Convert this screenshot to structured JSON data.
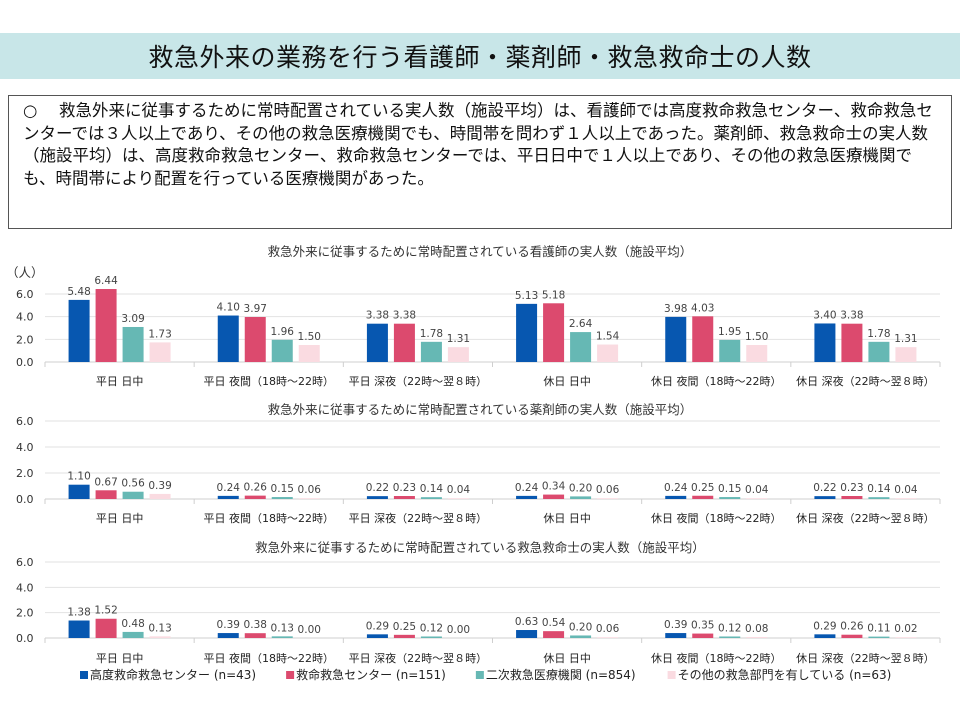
{
  "page": {
    "title": "救急外来の業務を行う看護師・薬剤師・救急救命士の人数",
    "summary_bullet": "○",
    "summary_text": "救急外来に従事するために常時配置されている実人数（施設平均）は、看護師では高度救命救急センター、救命救急センターでは３人以上であり、その他の救急医療機関でも、時間帯を問わず１人以上であった。薬剤師、救急救命士の実人数（施設平均）は、高度救命救急センター、救命救急センターでは、平日日中で１人以上であり、その他の救急医療機関でも、時間帯により配置を行っている医療機関があった。"
  },
  "legend": [
    {
      "label": "高度救命救急センター (n=43)",
      "color": "#0757b0"
    },
    {
      "label": "救命救急センター (n=151)",
      "color": "#dc4a6e"
    },
    {
      "label": "二次救急医療機関 (n=854)",
      "color": "#66b8b4"
    },
    {
      "label": "その他の救急部門を有している (n=63)",
      "color": "#fadbe1"
    }
  ],
  "chart_data": [
    {
      "type": "bar",
      "title": "救急外来に従事するために常時配置されている看護師の実人数（施設平均）",
      "ylabel": "（人）",
      "ylim": [
        0,
        6
      ],
      "yticks": [
        "0.0",
        "2.0",
        "4.0",
        "6.0"
      ],
      "grid": true,
      "categories": [
        "平日 日中",
        "平日 夜間（18時～22時）",
        "平日 深夜（22時～翌８時）",
        "休日 日中",
        "休日 夜間（18時～22時）",
        "休日 深夜（22時～翌８時）"
      ],
      "series": [
        {
          "name": "高度救命救急センター (n=43)",
          "values": [
            5.48,
            4.1,
            3.38,
            5.13,
            3.98,
            3.4
          ],
          "labels": [
            "5.48",
            "4.10",
            "3.38",
            "5.13",
            "3.98",
            "3.40"
          ]
        },
        {
          "name": "救命救急センター (n=151)",
          "values": [
            6.44,
            3.97,
            3.38,
            5.18,
            4.03,
            3.38
          ],
          "labels": [
            "6.44",
            "3.97",
            "3.38",
            "5.18",
            "4.03",
            "3.38"
          ]
        },
        {
          "name": "二次救急医療機関 (n=854)",
          "values": [
            3.09,
            1.96,
            1.78,
            2.64,
            1.95,
            1.78
          ],
          "labels": [
            "3.09",
            "1.96",
            "1.78",
            "2.64",
            "1.95",
            "1.78"
          ]
        },
        {
          "name": "その他の救急部門を有している (n=63)",
          "values": [
            1.73,
            1.5,
            1.31,
            1.54,
            1.5,
            1.31
          ],
          "labels": [
            "1.73",
            "1.50",
            "1.31",
            "1.54",
            "1.50",
            "1.31"
          ]
        }
      ]
    },
    {
      "type": "bar",
      "title": "救急外来に従事するために常時配置されている薬剤師の実人数（施設平均）",
      "ylabel": "",
      "ylim": [
        0,
        6
      ],
      "yticks": [
        "0.0",
        "2.0",
        "4.0",
        "6.0"
      ],
      "grid": true,
      "categories": [
        "平日 日中",
        "平日 夜間（18時～22時）",
        "平日 深夜（22時～翌８時）",
        "休日 日中",
        "休日 夜間（18時～22時）",
        "休日 深夜（22時～翌８時）"
      ],
      "series": [
        {
          "name": "高度救命救急センター (n=43)",
          "values": [
            1.1,
            0.24,
            0.22,
            0.24,
            0.24,
            0.22
          ],
          "labels": [
            "1.10",
            "0.24",
            "0.22",
            "0.24",
            "0.24",
            "0.22"
          ]
        },
        {
          "name": "救命救急センター (n=151)",
          "values": [
            0.67,
            0.26,
            0.23,
            0.34,
            0.25,
            0.23
          ],
          "labels": [
            "0.67",
            "0.26",
            "0.23",
            "0.34",
            "0.25",
            "0.23"
          ]
        },
        {
          "name": "二次救急医療機関 (n=854)",
          "values": [
            0.56,
            0.15,
            0.14,
            0.2,
            0.15,
            0.14
          ],
          "labels": [
            "0.56",
            "0.15",
            "0.14",
            "0.20",
            "0.15",
            "0.14"
          ]
        },
        {
          "name": "その他の救急部門を有している (n=63)",
          "values": [
            0.39,
            0.06,
            0.04,
            0.06,
            0.04,
            0.04
          ],
          "labels": [
            "0.39",
            "0.06",
            "0.04",
            "0.06",
            "0.04",
            "0.04"
          ]
        }
      ]
    },
    {
      "type": "bar",
      "title": "救急外来に従事するために常時配置されている救急救命士の実人数（施設平均）",
      "ylabel": "",
      "ylim": [
        0,
        6
      ],
      "yticks": [
        "0.0",
        "2.0",
        "4.0",
        "6.0"
      ],
      "grid": true,
      "categories": [
        "平日 日中",
        "平日 夜間（18時～22時）",
        "平日 深夜（22時～翌８時）",
        "休日 日中",
        "休日 夜間（18時～22時）",
        "休日 深夜（22時～翌８時）"
      ],
      "series": [
        {
          "name": "高度救命救急センター (n=43)",
          "values": [
            1.38,
            0.39,
            0.29,
            0.63,
            0.39,
            0.29
          ],
          "labels": [
            "1.38",
            "0.39",
            "0.29",
            "0.63",
            "0.39",
            "0.29"
          ]
        },
        {
          "name": "救命救急センター (n=151)",
          "values": [
            1.52,
            0.38,
            0.25,
            0.54,
            0.35,
            0.26
          ],
          "labels": [
            "1.52",
            "0.38",
            "0.25",
            "0.54",
            "0.35",
            "0.26"
          ]
        },
        {
          "name": "二次救急医療機関 (n=854)",
          "values": [
            0.48,
            0.13,
            0.12,
            0.2,
            0.12,
            0.11
          ],
          "labels": [
            "0.48",
            "0.13",
            "0.12",
            "0.20",
            "0.12",
            "0.11"
          ]
        },
        {
          "name": "その他の救急部門を有している (n=63)",
          "values": [
            0.13,
            0.0,
            0.0,
            0.06,
            0.08,
            0.02
          ],
          "labels": [
            "0.13",
            "0.00",
            "0.00",
            "0.06",
            "0.08",
            "0.02"
          ]
        }
      ]
    }
  ]
}
